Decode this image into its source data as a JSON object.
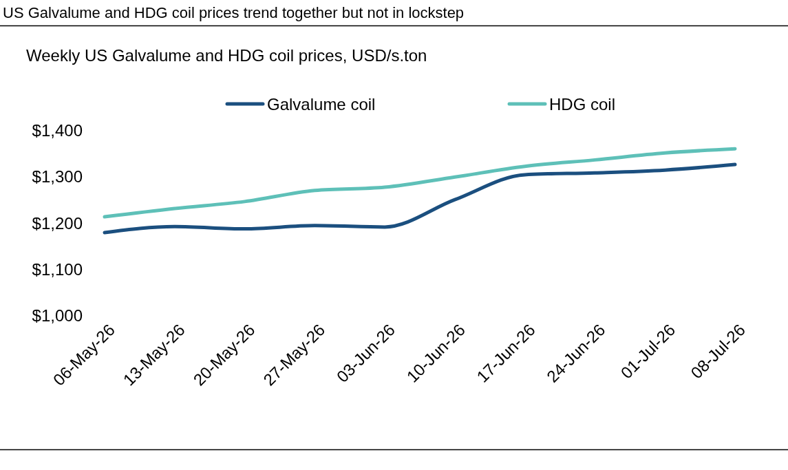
{
  "chart_data": {
    "type": "line",
    "title": "US Galvalume and HDG coil prices trend together but not in lockstep",
    "subtitle": "Weekly US Galvalume and HDG coil prices, USD/s.ton",
    "categories": [
      "06-May-26",
      "13-May-26",
      "20-May-26",
      "27-May-26",
      "03-Jun-26",
      "10-Jun-26",
      "17-Jun-26",
      "24-Jun-26",
      "01-Jul-26",
      "08-Jul-26"
    ],
    "series": [
      {
        "name": "Galvalume coil",
        "color": "#1b4f7f",
        "values": [
          1180,
          1193,
          1188,
          1195,
          1192,
          1251,
          1305,
          1309,
          1315,
          1327
        ]
      },
      {
        "name": "HDG coil",
        "color": "#5ec0b8",
        "values": [
          1214,
          1232,
          1247,
          1271,
          1278,
          1300,
          1323,
          1337,
          1352,
          1361
        ]
      }
    ],
    "ylim": [
      1000,
      1400
    ],
    "yticks": [
      {
        "value": 1000,
        "label": "$1,000"
      },
      {
        "value": 1100,
        "label": "$1,100"
      },
      {
        "value": 1200,
        "label": "$1,200"
      },
      {
        "value": 1300,
        "label": "$1,300"
      },
      {
        "value": 1400,
        "label": "$1,400"
      }
    ],
    "grid": false,
    "legend": "top",
    "marker": "none",
    "line_style": "solid"
  }
}
